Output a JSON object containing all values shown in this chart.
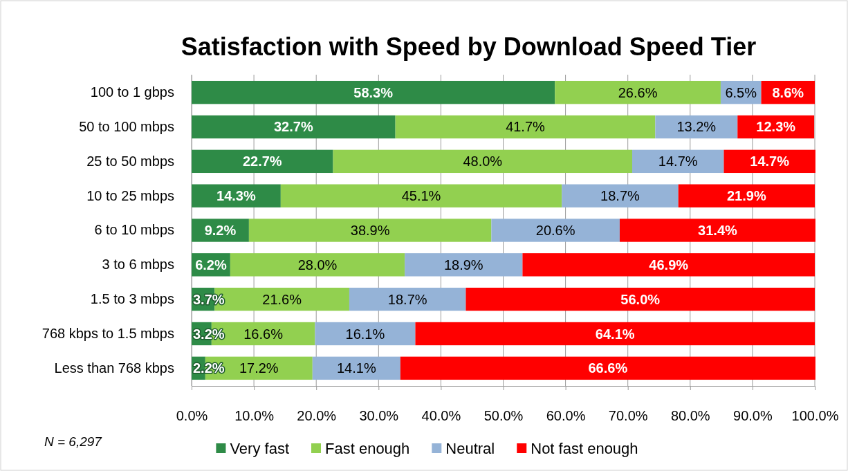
{
  "chart_data": {
    "type": "bar",
    "orientation": "horizontal",
    "stacked": true,
    "title": "Satisfaction with Speed by Download Speed Tier",
    "categories": [
      "100 to 1 gbps",
      "50 to 100 mbps",
      "25 to 50 mbps",
      "10 to 25 mbps",
      "6 to 10 mbps",
      "3 to 6 mbps",
      "1.5 to 3 mbps",
      "768 kbps to 1.5 mbps",
      "Less than 768 kbps"
    ],
    "series": [
      {
        "name": "Very fast",
        "color": "#2e8b47",
        "values": [
          58.3,
          32.7,
          22.7,
          14.3,
          9.2,
          6.2,
          3.7,
          3.2,
          2.2
        ],
        "value_labels": [
          "58.3%",
          "32.7%",
          "22.7%",
          "14.3%",
          "9.2%",
          "6.2%",
          "3.7%",
          "3.2%",
          "2.2%"
        ]
      },
      {
        "name": "Fast enough",
        "color": "#92d050",
        "values": [
          26.6,
          41.7,
          48.0,
          45.1,
          38.9,
          28.0,
          21.6,
          16.6,
          17.2
        ],
        "value_labels": [
          "26.6%",
          "41.7%",
          "48.0%",
          "45.1%",
          "38.9%",
          "28.0%",
          "21.6%",
          "16.6%",
          "17.2%"
        ]
      },
      {
        "name": "Neutral",
        "color": "#95b3d7",
        "values": [
          6.5,
          13.2,
          14.7,
          18.7,
          20.6,
          18.9,
          18.7,
          16.1,
          14.1
        ],
        "value_labels": [
          "6.5%",
          "13.2%",
          "14.7%",
          "18.7%",
          "20.6%",
          "18.9%",
          "18.7%",
          "16.1%",
          "14.1%"
        ]
      },
      {
        "name": "Not fast enough",
        "color": "#ff0000",
        "values": [
          8.6,
          12.3,
          14.7,
          21.9,
          31.4,
          46.9,
          56.0,
          64.1,
          66.6
        ],
        "value_labels": [
          "8.6%",
          "12.3%",
          "14.7%",
          "21.9%",
          "31.4%",
          "46.9%",
          "56.0%",
          "64.1%",
          "66.6%"
        ]
      }
    ],
    "xlim": [
      0,
      100
    ],
    "xticks": [
      {
        "value": 0,
        "label": "0.0%"
      },
      {
        "value": 10,
        "label": "10.0%"
      },
      {
        "value": 20,
        "label": "20.0%"
      },
      {
        "value": 30,
        "label": "30.0%"
      },
      {
        "value": 40,
        "label": "40.0%"
      },
      {
        "value": 50,
        "label": "50.0%"
      },
      {
        "value": 60,
        "label": "60.0%"
      },
      {
        "value": 70,
        "label": "70.0%"
      },
      {
        "value": 80,
        "label": "80.0%"
      },
      {
        "value": 90,
        "label": "90.0%"
      },
      {
        "value": 100,
        "label": "100.0%"
      }
    ],
    "grid": "x",
    "legend": "bottom",
    "annotations": [
      "N = 6,297"
    ]
  }
}
